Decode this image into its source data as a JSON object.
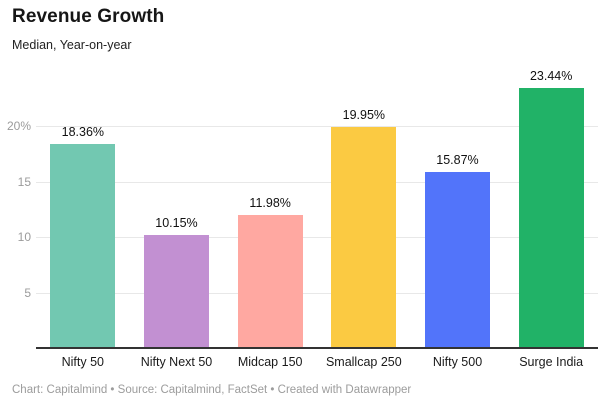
{
  "header": {
    "title": "Revenue Growth",
    "subtitle": "Median, Year-on-year"
  },
  "footer": {
    "text": "Chart: Capitalmind • Source: Capitalmind, FactSet • Created with Datawrapper"
  },
  "colors": {
    "background": "#ffffff",
    "axis_line": "#333333",
    "gridline": "#e8e8e8",
    "tick_label": "#9b9b9b",
    "value_label": "#111111",
    "category_label": "#1a1a1a",
    "footer_text": "#9c9c9c"
  },
  "chart_data": {
    "type": "bar",
    "title": "Revenue Growth",
    "subtitle": "Median, Year-on-year",
    "categories": [
      "Nifty 50",
      "Nifty Next 50",
      "Midcap 150",
      "Smallcap 250",
      "Nifty 500",
      "Surge India"
    ],
    "values": [
      18.36,
      10.15,
      11.98,
      19.95,
      15.87,
      23.44
    ],
    "value_labels": [
      "18.36%",
      "10.15%",
      "11.98%",
      "19.95%",
      "15.87%",
      "23.44%"
    ],
    "bar_colors": [
      "#72c8b1",
      "#c290d2",
      "#ffa8a1",
      "#fbca42",
      "#5274fa",
      "#21b267"
    ],
    "xlabel": "",
    "ylabel": "",
    "ylim": [
      0,
      25
    ],
    "yticks": [
      {
        "value": 5,
        "label": "5"
      },
      {
        "value": 10,
        "label": "10"
      },
      {
        "value": 15,
        "label": "15"
      },
      {
        "value": 20,
        "label": "20%"
      }
    ],
    "grid": true,
    "legend": false
  }
}
